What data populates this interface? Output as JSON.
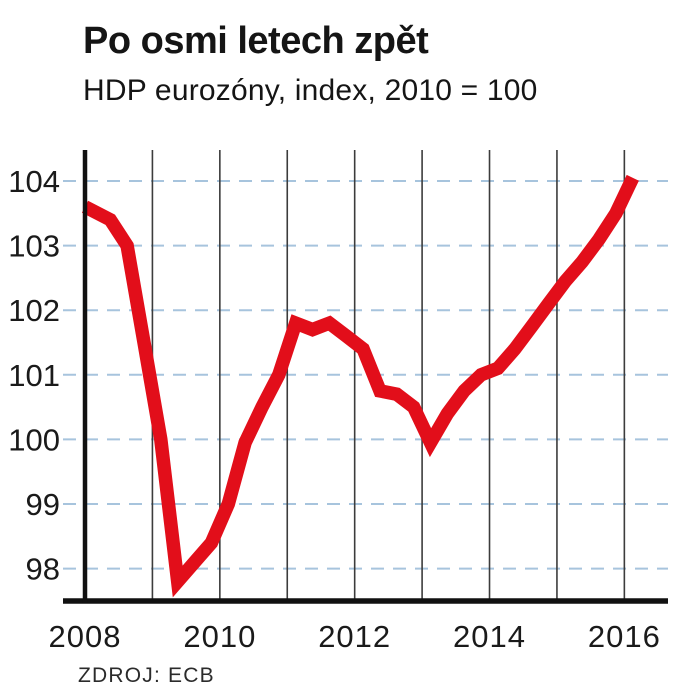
{
  "header": {
    "title": "Po osmi letech zpět",
    "subtitle": "HDP eurozóny, index, 2010 = 100"
  },
  "footer": {
    "source": "ZDROJ: ECB"
  },
  "chart_data": {
    "type": "line",
    "title": "Po osmi letech zpět",
    "subtitle": "HDP eurozóny, index, 2010 = 100",
    "source": "ZDROJ: ECB",
    "ylabel": "HDP eurozóny, index, 2010 = 100",
    "xlabel": "",
    "y_ticks": [
      104,
      103,
      102,
      101,
      100,
      99,
      98
    ],
    "ylim": [
      97.5,
      104.5
    ],
    "x_gridline_years": [
      2008,
      2009,
      2010,
      2011,
      2012,
      2013,
      2014,
      2015,
      2016
    ],
    "x_tick_labels": [
      {
        "label": "2008",
        "year": 2008
      },
      {
        "label": "2010",
        "year": 2010
      },
      {
        "label": "2012",
        "year": 2012
      },
      {
        "label": "2014",
        "year": 2014
      },
      {
        "label": "2016",
        "year": 2016
      }
    ],
    "grid": {
      "horizontal": "dashed",
      "vertical": "solid"
    },
    "legend": "none",
    "series": [
      {
        "name": "HDP eurozóny (index, 2010 = 100)",
        "quarters": [
          "2008Q1",
          "2008Q2",
          "2008Q3",
          "2008Q4",
          "2009Q1",
          "2009Q2",
          "2009Q3",
          "2009Q4",
          "2010Q1",
          "2010Q2",
          "2010Q3",
          "2010Q4",
          "2011Q1",
          "2011Q2",
          "2011Q3",
          "2011Q4",
          "2012Q1",
          "2012Q2",
          "2012Q3",
          "2012Q4",
          "2013Q1",
          "2013Q2",
          "2013Q3",
          "2013Q4",
          "2014Q1",
          "2014Q2",
          "2014Q3",
          "2014Q4",
          "2015Q1",
          "2015Q2",
          "2015Q3",
          "2015Q4",
          "2016Q1"
        ],
        "values": [
          103.6,
          103.4,
          103.0,
          101.5,
          100.0,
          97.8,
          98.1,
          98.4,
          99.0,
          99.95,
          100.5,
          101.0,
          101.8,
          101.7,
          101.8,
          101.6,
          101.4,
          100.75,
          100.7,
          100.5,
          99.95,
          100.4,
          100.75,
          101.0,
          101.1,
          101.4,
          101.75,
          102.1,
          102.45,
          102.75,
          103.1,
          103.5,
          104.05
        ]
      }
    ],
    "colors": {
      "line": "#e20e1a",
      "h_gridline": "#a7c4dd",
      "v_gridline": "#3c3c3c",
      "axis": "#111111",
      "text": "#1a1a1a"
    }
  }
}
